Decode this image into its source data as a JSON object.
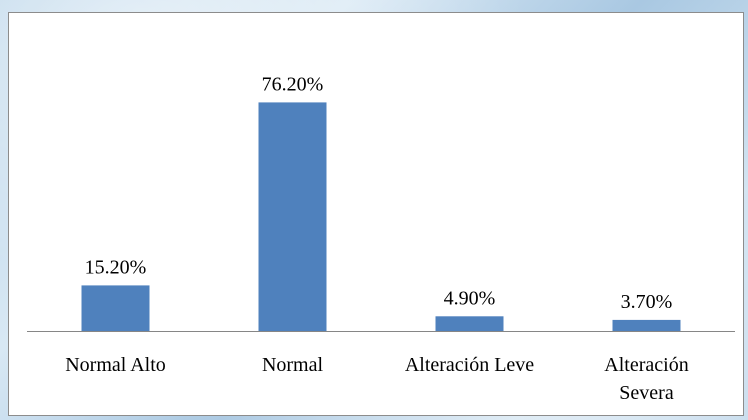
{
  "chart_data": {
    "type": "bar",
    "categories": [
      "Normal Alto",
      "Normal",
      "Alteración Leve",
      "Alteración Severa"
    ],
    "category_lines": [
      [
        "Normal Alto"
      ],
      [
        "Normal"
      ],
      [
        "Alteración Leve"
      ],
      [
        "Alteración",
        "Severa"
      ]
    ],
    "values": [
      15.2,
      76.2,
      4.9,
      3.7
    ],
    "data_labels": [
      "15.20%",
      "76.20%",
      "4.90%",
      "3.70%"
    ],
    "value_unit": "%",
    "ylim": [
      0,
      100
    ],
    "grid": false,
    "legend": "none",
    "colors": {
      "bar": "#4f81bd",
      "axis": "#868686",
      "text": "#000000",
      "background": "#ffffff"
    }
  }
}
